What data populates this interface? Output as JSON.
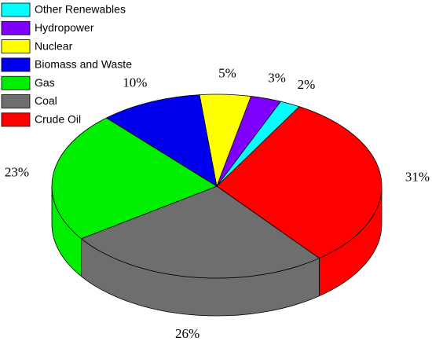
{
  "chart_data": {
    "type": "pie3d",
    "categories": [
      "Crude Oil",
      "Coal",
      "Gas",
      "Biomass and Waste",
      "Nuclear",
      "Hydropower",
      "Other Renewables"
    ],
    "values": [
      31,
      26,
      23,
      10,
      5,
      3,
      2
    ],
    "value_labels": [
      "31%",
      "26%",
      "23%",
      "10%",
      "5%",
      "3%",
      "2%"
    ],
    "colors": [
      "#ff0000",
      "#6e6e6e",
      "#00ee00",
      "#0000ee",
      "#ffff00",
      "#8000ff",
      "#00ffff"
    ],
    "legend": "upper left"
  }
}
